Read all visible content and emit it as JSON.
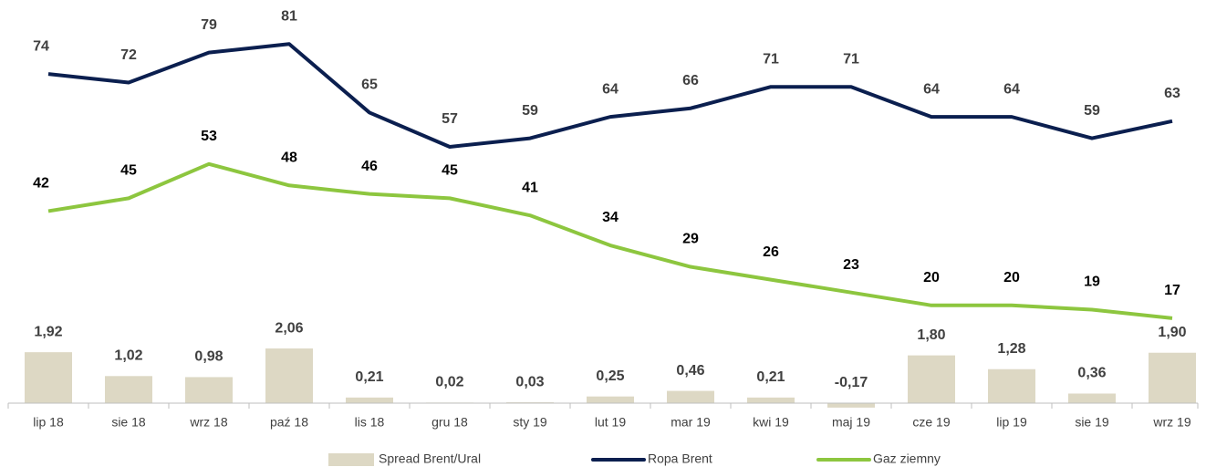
{
  "chart_data": {
    "type": "combo",
    "categories": [
      "lip 18",
      "sie 18",
      "wrz 18",
      "paź 18",
      "lis 18",
      "gru 18",
      "sty 19",
      "lut 19",
      "mar 19",
      "kwi 19",
      "maj 19",
      "cze 19",
      "lip 19",
      "sie 19",
      "wrz 19"
    ],
    "ylim": [
      -9,
      90
    ],
    "y2lim": [
      -1,
      15
    ],
    "series": [
      {
        "name": "Spread Brent/Ural",
        "type": "bar",
        "axis": "y2",
        "color": "#ddd8c4",
        "values": [
          1.92,
          1.02,
          0.98,
          2.06,
          0.21,
          0.02,
          0.03,
          0.25,
          0.46,
          0.21,
          -0.17,
          1.8,
          1.28,
          0.36,
          1.9
        ],
        "value_labels": [
          "1,92",
          "1,02",
          "0,98",
          "2,06",
          "0,21",
          "0,02",
          "0,03",
          "0,25",
          "0,46",
          "0,21",
          "-0,17",
          "1,80",
          "1,28",
          "0,36",
          "1,90"
        ]
      },
      {
        "name": "Ropa Brent",
        "type": "line",
        "color": "#0b1f4f",
        "values": [
          74,
          72,
          79,
          81,
          65,
          57,
          59,
          64,
          66,
          71,
          71,
          64,
          64,
          59,
          63
        ]
      },
      {
        "name": "Gaz ziemny",
        "type": "line",
        "color": "#8dc63f",
        "values": [
          42,
          45,
          53,
          48,
          46,
          45,
          41,
          34,
          29,
          26,
          23,
          20,
          20,
          19,
          17
        ]
      }
    ]
  }
}
